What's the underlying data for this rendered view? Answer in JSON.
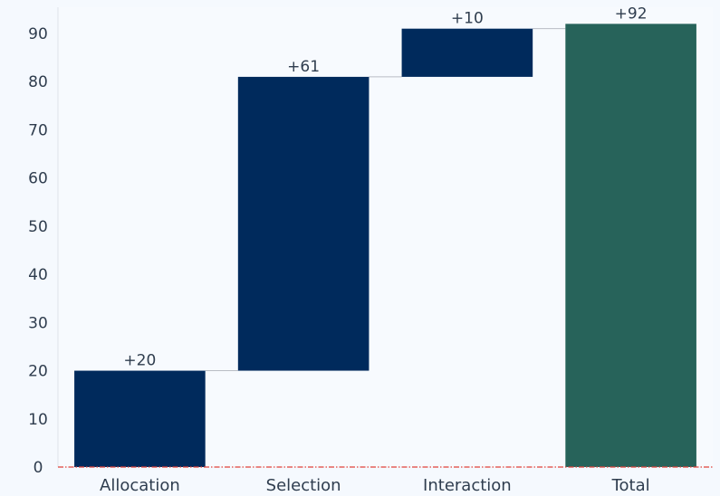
{
  "chart_data": {
    "type": "bar",
    "subtype": "waterfall",
    "title": "",
    "xlabel": "",
    "ylabel": "",
    "categories": [
      "Allocation",
      "Selection",
      "Interaction",
      "Total"
    ],
    "values": [
      20,
      61,
      10,
      92
    ],
    "is_total": [
      false,
      false,
      false,
      true
    ],
    "data_labels": [
      "+20",
      "+61",
      "+10",
      "+92"
    ],
    "ylim": [
      0,
      92
    ],
    "yticks": [
      0,
      10,
      20,
      30,
      40,
      50,
      60,
      70,
      80,
      90
    ],
    "grid": false,
    "baseline": {
      "value": 0,
      "style": "dash-dot",
      "color": "#e0413a"
    },
    "colors": {
      "step": "#002a5c",
      "total": "#27635a",
      "connector": "#b8bcc4",
      "background": "#f5f9fe",
      "plot_background": "#f7fafe"
    }
  }
}
